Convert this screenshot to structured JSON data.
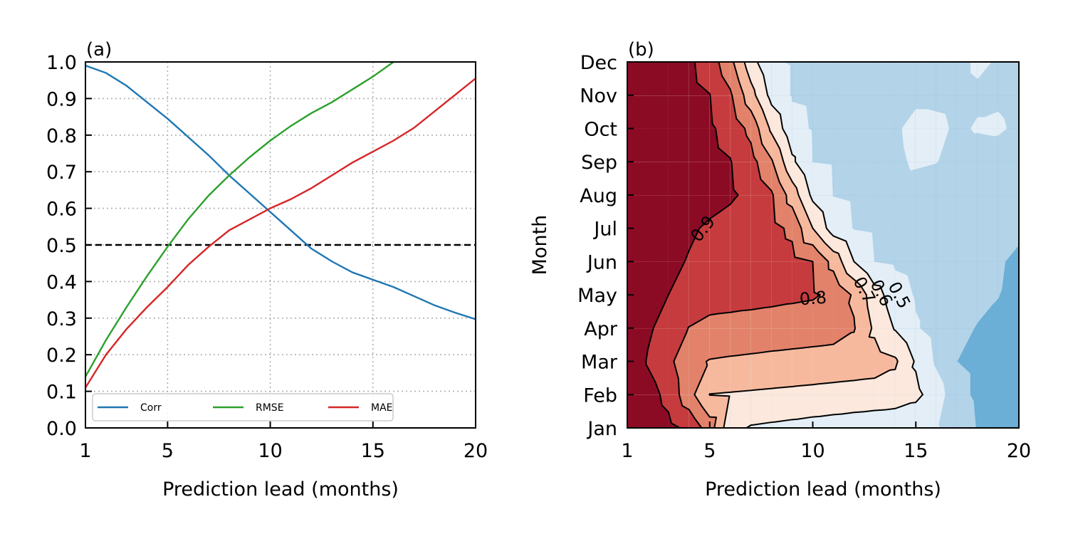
{
  "chart_data": [
    {
      "type": "line",
      "title": "(a)",
      "x_label": "Prediction lead (months)",
      "x": [
        1,
        2,
        3,
        4,
        5,
        6,
        7,
        8,
        9,
        10,
        11,
        12,
        13,
        14,
        15,
        16,
        17,
        18,
        19,
        20
      ],
      "series": [
        {
          "name": "Corr",
          "color": "#1f77b4",
          "values": [
            0.99,
            0.97,
            0.935,
            0.89,
            0.845,
            0.795,
            0.745,
            0.69,
            0.64,
            0.59,
            0.54,
            0.49,
            0.455,
            0.425,
            0.405,
            0.385,
            0.36,
            0.335,
            0.315,
            0.297
          ]
        },
        {
          "name": "RMSE",
          "color": "#2ca02c",
          "values": [
            0.14,
            0.24,
            0.33,
            0.415,
            0.495,
            0.57,
            0.635,
            0.69,
            0.74,
            0.785,
            0.825,
            0.86,
            0.89,
            0.925,
            0.96,
            1.0,
            null,
            null,
            null,
            null
          ]
        },
        {
          "name": "MAE",
          "color": "#d62728",
          "values": [
            0.11,
            0.2,
            0.27,
            0.33,
            0.385,
            0.445,
            0.495,
            0.54,
            0.57,
            0.6,
            0.625,
            0.655,
            0.69,
            0.725,
            0.755,
            0.785,
            0.82,
            0.865,
            0.91,
            0.955
          ]
        }
      ],
      "hline": 0.5,
      "xlim": [
        1,
        20
      ],
      "xticks": [
        1,
        5,
        10,
        15,
        20
      ],
      "ylim": [
        0,
        1
      ],
      "yticks": [
        {
          "value": 0,
          "label": "0.0"
        },
        0.1,
        0.2,
        0.3,
        0.4,
        0.5,
        0.6,
        0.7,
        0.8,
        0.9,
        {
          "value": 1,
          "label": "1.0"
        }
      ],
      "grid": true,
      "legend": "lower left"
    },
    {
      "type": "contour",
      "title": "(b)",
      "x_label": "Prediction lead (months)",
      "y_label": "Month",
      "x": [
        1,
        2,
        3,
        4,
        5,
        6,
        7,
        8,
        9,
        10,
        11,
        12,
        13,
        14,
        15,
        16,
        17,
        18,
        19,
        20
      ],
      "y": [
        "Jan",
        "Feb",
        "Mar",
        "Apr",
        "May",
        "Jun",
        "Jul",
        "Aug",
        "Sep",
        "Oct",
        "Nov",
        "Dec"
      ],
      "z": [
        [
          1.0,
          0.964,
          0.927,
          0.878,
          0.75,
          0.529,
          0.492,
          0.483,
          0.474,
          0.464,
          0.455,
          0.445,
          0.436,
          0.426,
          0.417,
          0.407,
          0.367,
          0.293,
          0.277,
          0.26
        ],
        [
          1.0,
          0.943,
          0.87,
          0.736,
          0.598,
          0.593,
          0.588,
          0.583,
          0.578,
          0.573,
          0.568,
          0.563,
          0.558,
          0.553,
          0.525,
          0.45,
          0.329,
          0.283,
          0.261,
          0.24
        ],
        [
          1.0,
          0.89,
          0.826,
          0.725,
          0.695,
          0.688,
          0.682,
          0.675,
          0.669,
          0.663,
          0.656,
          0.65,
          0.643,
          0.615,
          0.489,
          0.383,
          0.3,
          0.283,
          0.267,
          0.25
        ],
        [
          1.0,
          0.917,
          0.853,
          0.797,
          0.77,
          0.765,
          0.761,
          0.756,
          0.752,
          0.747,
          0.742,
          0.707,
          0.582,
          0.492,
          0.408,
          0.364,
          0.324,
          0.295,
          0.283,
          0.27
        ],
        [
          1.0,
          0.95,
          0.9,
          0.867,
          0.846,
          0.839,
          0.832,
          0.825,
          0.817,
          0.81,
          0.782,
          0.686,
          0.543,
          0.446,
          0.391,
          0.369,
          0.347,
          0.324,
          0.302,
          0.27
        ],
        [
          1.0,
          0.961,
          0.922,
          0.894,
          0.881,
          0.869,
          0.856,
          0.843,
          0.83,
          0.8,
          0.667,
          0.5,
          0.398,
          0.383,
          0.367,
          0.352,
          0.336,
          0.321,
          0.305,
          0.29
        ],
        [
          1.0,
          0.971,
          0.941,
          0.912,
          0.888,
          0.869,
          0.849,
          0.83,
          0.78,
          0.6,
          0.45,
          0.395,
          0.384,
          0.374,
          0.363,
          0.352,
          0.342,
          0.331,
          0.321,
          0.31
        ],
        [
          1.0,
          0.982,
          0.965,
          0.947,
          0.93,
          0.912,
          0.88,
          0.813,
          0.655,
          0.476,
          0.397,
          0.388,
          0.38,
          0.371,
          0.363,
          0.354,
          0.346,
          0.337,
          0.329,
          0.32
        ],
        [
          1.0,
          0.981,
          0.962,
          0.942,
          0.923,
          0.904,
          0.838,
          0.711,
          0.519,
          0.398,
          0.392,
          0.386,
          0.38,
          0.385,
          0.41,
          0.402,
          0.37,
          0.365,
          0.36,
          0.355
        ],
        [
          1.0,
          0.978,
          0.957,
          0.935,
          0.913,
          0.868,
          0.771,
          0.58,
          0.431,
          0.392,
          0.385,
          0.38,
          0.378,
          0.39,
          0.42,
          0.415,
          0.39,
          0.405,
          0.41,
          0.385
        ],
        [
          1.0,
          0.976,
          0.951,
          0.927,
          0.902,
          0.815,
          0.638,
          0.467,
          0.392,
          0.385,
          0.38,
          0.375,
          0.372,
          0.375,
          0.385,
          0.385,
          0.38,
          0.39,
          0.39,
          0.375
        ],
        [
          1.0,
          0.972,
          0.944,
          0.917,
          0.856,
          0.729,
          0.54,
          0.411,
          0.392,
          0.385,
          0.38,
          0.375,
          0.372,
          0.37,
          0.372,
          0.375,
          0.38,
          0.41,
          0.395,
          0.38
        ]
      ],
      "levels": [
        0.2,
        0.3,
        0.4,
        0.5,
        0.6,
        0.7,
        0.8,
        0.9
      ],
      "colors": [
        "#6baed6",
        "#b3d3e8",
        "#e3eef7",
        "#fce8dd",
        "#f7b99e",
        "#e3826a",
        "#c63b3e",
        "#8b0b25"
      ],
      "line_levels": [
        0.5,
        0.6,
        0.7,
        0.8,
        0.9
      ],
      "xlim": [
        1,
        20
      ],
      "xticks": [
        1,
        5,
        10,
        15,
        20
      ]
    }
  ]
}
